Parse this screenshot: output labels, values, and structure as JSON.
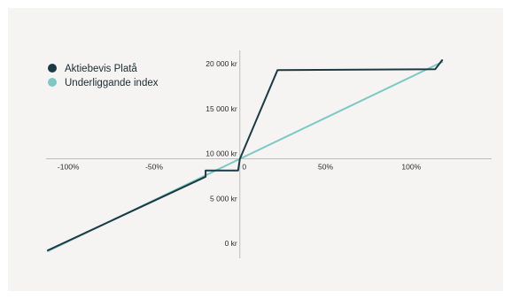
{
  "chart_data": {
    "type": "line",
    "x_label_values": [
      -100,
      -50,
      0,
      50,
      100
    ],
    "x_tick_labels": [
      "-100%",
      "-50%",
      "0",
      "50%",
      "100%"
    ],
    "y_label_values": [
      0,
      5000,
      10000,
      15000,
      20000
    ],
    "y_tick_labels": [
      "0 kr",
      "5 000 kr",
      "10 000 kr",
      "15 000 kr",
      "20 000 kr"
    ],
    "x_range": [
      -112,
      120
    ],
    "y_range": [
      -400,
      21300
    ],
    "grid": false,
    "legend_position": "top-left",
    "series": [
      {
        "name": "Aktiebevis Platå",
        "color": "#1b3a44",
        "points": [
          [
            -112,
            -200
          ],
          [
            -20,
            8000
          ],
          [
            -20,
            8700
          ],
          [
            -1,
            8700
          ],
          [
            0,
            10000
          ],
          [
            22,
            19900
          ],
          [
            114,
            20000
          ],
          [
            118,
            21000
          ]
        ]
      },
      {
        "name": "Underliggande index",
        "color": "#7cc8c3",
        "points": [
          [
            -112,
            -300
          ],
          [
            0,
            10000
          ],
          [
            118,
            20800
          ]
        ]
      }
    ]
  }
}
